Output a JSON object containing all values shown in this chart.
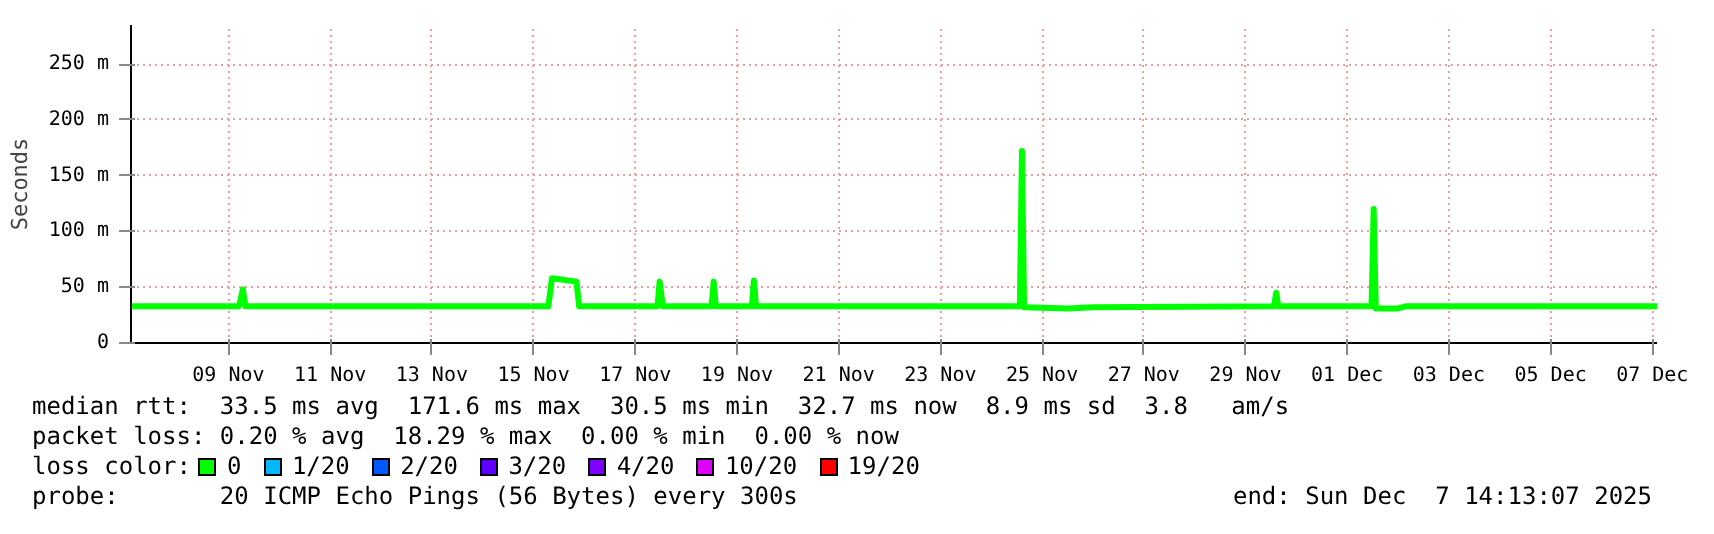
{
  "chart_data": {
    "type": "line",
    "ylabel": "Seconds",
    "x": [
      "2025-11-07T14:00",
      "2025-11-09T17:00",
      "2025-11-09T18:48",
      "2025-11-09T20:00",
      "2025-11-15T19:00",
      "2025-11-15T20:40",
      "2025-11-16T08:15",
      "2025-11-16T09:30",
      "2025-11-17T22:30",
      "2025-11-17T23:30",
      "2025-11-18T01:00",
      "2025-11-19T00:00",
      "2025-11-19T01:00",
      "2025-11-19T02:00",
      "2025-11-19T19:00",
      "2025-11-19T20:00",
      "2025-11-19T21:00",
      "2025-11-25T01:30",
      "2025-11-25T02:30",
      "2025-11-25T03:30",
      "2025-11-26T00:00",
      "2025-11-26T12:00",
      "2025-11-30T01:30",
      "2025-11-30T02:30",
      "2025-11-30T03:30",
      "2025-12-01T23:30",
      "2025-12-02T00:30",
      "2025-12-02T01:30",
      "2025-12-02T12:00",
      "2025-12-02T16:00",
      "2025-12-07T14:13"
    ],
    "legend_title": "loss color:",
    "legend": "bottom",
    "grid": true,
    "series": [
      {
        "name": "0",
        "color": "#00ff00",
        "values": [
          33,
          33,
          48,
          33,
          33,
          58,
          55,
          33,
          33,
          55,
          33,
          33,
          55,
          33,
          33,
          56,
          33,
          33,
          172,
          32,
          31,
          32,
          33,
          45,
          33,
          33,
          120,
          31,
          31,
          33,
          33
        ]
      },
      {
        "name": "1/20",
        "color": "#00b8ff",
        "values": [
          null,
          null,
          null,
          null,
          null,
          null,
          null,
          null,
          null,
          null,
          null,
          null,
          null,
          null,
          null,
          null,
          null,
          null,
          null,
          null,
          null,
          null,
          null,
          null,
          null,
          null,
          null,
          null,
          null,
          null,
          null
        ]
      },
      {
        "name": "2/20",
        "color": "#0059ff",
        "values": [
          null,
          null,
          null,
          null,
          null,
          null,
          null,
          null,
          null,
          null,
          null,
          null,
          null,
          null,
          null,
          null,
          null,
          null,
          null,
          null,
          null,
          null,
          null,
          null,
          null,
          null,
          null,
          null,
          null,
          null,
          null
        ]
      },
      {
        "name": "3/20",
        "color": "#5e00ff",
        "values": [
          null,
          null,
          null,
          null,
          null,
          null,
          null,
          null,
          null,
          null,
          null,
          null,
          null,
          null,
          null,
          null,
          null,
          null,
          null,
          null,
          null,
          null,
          null,
          null,
          null,
          null,
          null,
          null,
          null,
          null,
          null
        ]
      },
      {
        "name": "4/20",
        "color": "#7e00ff",
        "values": [
          null,
          null,
          null,
          null,
          null,
          null,
          null,
          null,
          null,
          null,
          null,
          null,
          null,
          null,
          null,
          null,
          null,
          null,
          null,
          null,
          null,
          null,
          null,
          null,
          null,
          null,
          null,
          null,
          null,
          null,
          null
        ]
      },
      {
        "name": "10/20",
        "color": "#dd00ff",
        "values": [
          null,
          null,
          null,
          null,
          null,
          null,
          null,
          null,
          null,
          null,
          null,
          null,
          null,
          null,
          null,
          null,
          null,
          null,
          null,
          null,
          null,
          null,
          null,
          null,
          null,
          null,
          null,
          null,
          null,
          null,
          null
        ]
      },
      {
        "name": "19/20",
        "color": "#ff0000",
        "values": [
          null,
          null,
          null,
          null,
          null,
          null,
          null,
          null,
          null,
          null,
          null,
          null,
          null,
          null,
          null,
          null,
          null,
          null,
          null,
          null,
          null,
          null,
          null,
          null,
          null,
          null,
          null,
          null,
          null,
          null,
          null
        ]
      }
    ],
    "xlim": [
      "2025-11-07T14:00",
      "2025-12-07T14:13"
    ],
    "xticks": [
      {
        "value": "2025-11-09T12:00",
        "label": "09 Nov"
      },
      {
        "value": "2025-11-11T12:00",
        "label": "11 Nov"
      },
      {
        "value": "2025-11-13T12:00",
        "label": "13 Nov"
      },
      {
        "value": "2025-11-15T12:00",
        "label": "15 Nov"
      },
      {
        "value": "2025-11-17T12:00",
        "label": "17 Nov"
      },
      {
        "value": "2025-11-19T12:00",
        "label": "19 Nov"
      },
      {
        "value": "2025-11-21T12:00",
        "label": "21 Nov"
      },
      {
        "value": "2025-11-23T12:00",
        "label": "23 Nov"
      },
      {
        "value": "2025-11-25T12:00",
        "label": "25 Nov"
      },
      {
        "value": "2025-11-27T12:00",
        "label": "27 Nov"
      },
      {
        "value": "2025-11-29T12:00",
        "label": "29 Nov"
      },
      {
        "value": "2025-12-01T12:00",
        "label": "01 Dec"
      },
      {
        "value": "2025-12-03T12:00",
        "label": "03 Dec"
      },
      {
        "value": "2025-12-05T12:00",
        "label": "05 Dec"
      },
      {
        "value": "2025-12-07T12:00",
        "label": "07 Dec"
      }
    ],
    "ylim": [
      0,
      285
    ],
    "yticks": [
      0,
      {
        "value": 50,
        "label": "50 m"
      },
      {
        "value": 100,
        "label": "100 m"
      },
      {
        "value": 150,
        "label": "150 m"
      },
      {
        "value": 200,
        "label": "200 m"
      },
      {
        "value": 250,
        "label": "250 m"
      }
    ],
    "annotations": [
      "median rtt:  33.5 ms avg  171.6 ms max  30.5 ms min  32.7 ms now  8.9 ms sd  3.8   am/s",
      "packet loss: 0.20 % avg  18.29 % max  0.00 % min  0.00 % now",
      "probe:       20 ICMP Echo Pings (56 Bytes) every 300s",
      "end: Sun Dec  7 14:13:07 2025"
    ]
  }
}
